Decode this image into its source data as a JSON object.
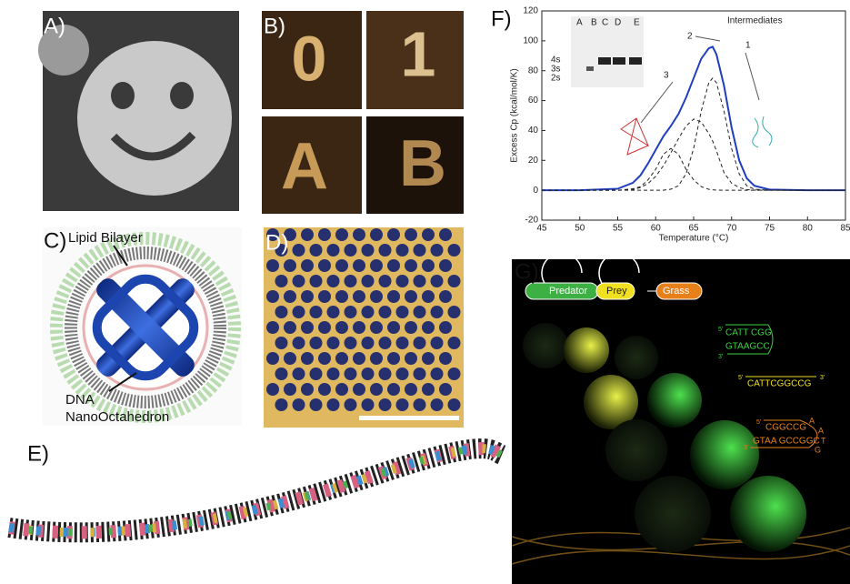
{
  "panels": {
    "A": {
      "label": "A)"
    },
    "B": {
      "label": "B)",
      "glyphs": [
        "0",
        "1",
        "A",
        "B"
      ]
    },
    "C": {
      "label": "C)",
      "lipid": "Lipid Bilayer",
      "dna": [
        "DNA",
        "NanoOctahedron"
      ]
    },
    "D": {
      "label": "D)"
    },
    "E": {
      "label": "E)"
    },
    "F": {
      "label": "F)"
    },
    "G": {
      "label": "G)",
      "nodes": [
        "Predator",
        "Prey",
        "Grass"
      ],
      "predator_seq": {
        "five": "5'",
        "top": "CATT CGG",
        "bottom": "GTAAGCC",
        "three": "3'"
      },
      "prey_seq": {
        "five": "5'",
        "top": "CATTCGGCCG",
        "three": "3'"
      },
      "grass_seq": {
        "five": "5'",
        "top": "CGGCCG",
        "bottom": "GTAA GCCGGC",
        "three": "3'",
        "loop": [
          "A",
          "A",
          "T",
          "G"
        ]
      }
    }
  },
  "chart_data": {
    "type": "line",
    "xlabel": "Temperature (°C)",
    "ylabel": "Excess Cp (kcal/mol/K)",
    "x": [
      45,
      50,
      55,
      57,
      58,
      59,
      60,
      61,
      62,
      63,
      64,
      65,
      66,
      67,
      67.5,
      68,
      69,
      70,
      71,
      72,
      73,
      75,
      80,
      85
    ],
    "series": [
      {
        "color": "#1f3fbf",
        "style": "solid",
        "values": [
          0,
          0,
          1,
          5,
          10,
          18,
          27,
          36,
          43,
          51,
          62,
          75,
          88,
          95,
          96,
          91,
          70,
          42,
          20,
          8,
          3,
          0.5,
          0,
          0
        ]
      },
      {
        "color": "#222222",
        "style": "dashed",
        "values": [
          0,
          0,
          0,
          1,
          2.4,
          7,
          14,
          24,
          28,
          24,
          14,
          7,
          2.4,
          0.6,
          0.3,
          0.1,
          0,
          0,
          0,
          0,
          0,
          0,
          0,
          0
        ]
      },
      {
        "color": "#222222",
        "style": "dashed",
        "values": [
          0,
          0,
          0,
          0.4,
          1.9,
          4.5,
          9.3,
          16.3,
          25,
          34.5,
          43,
          47.6,
          45.7,
          38,
          33,
          26.5,
          11.8,
          4.7,
          1.8,
          0.4,
          0.1,
          0,
          0,
          0
        ]
      },
      {
        "color": "#222222",
        "style": "dashed",
        "values": [
          0,
          0,
          0,
          0,
          0,
          0,
          0,
          0,
          0.7,
          3,
          11,
          28,
          53,
          72,
          75,
          72,
          53,
          28,
          11,
          3,
          0.7,
          0,
          0,
          0
        ]
      }
    ],
    "xlim": [
      45,
      85
    ],
    "ylim": [
      -20,
      120
    ],
    "xticks": [
      45,
      50,
      55,
      60,
      65,
      70,
      75,
      80,
      85
    ],
    "yticks": [
      -20,
      0,
      20,
      40,
      60,
      80,
      100,
      120
    ],
    "annotations": {
      "intermediates": "Intermediates",
      "numbers": [
        "1",
        "2",
        "3"
      ],
      "lanes": [
        "A",
        "B",
        "C",
        "D",
        "E"
      ],
      "bands": [
        "4s",
        "3s",
        "2s"
      ]
    }
  }
}
